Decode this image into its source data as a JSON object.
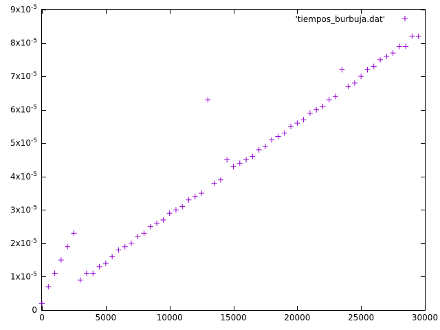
{
  "chart_data": {
    "type": "scatter",
    "title": "",
    "xlabel": "",
    "ylabel": "",
    "xlim": [
      0,
      30000
    ],
    "ylim": [
      0,
      9e-05
    ],
    "x_ticks": [
      0,
      5000,
      10000,
      15000,
      20000,
      25000,
      30000
    ],
    "x_tick_labels": [
      "0",
      "5000",
      "10000",
      "15000",
      "20000",
      "25000",
      "30000"
    ],
    "y_ticks": [
      0,
      1e-05,
      2e-05,
      3e-05,
      4e-05,
      5e-05,
      6e-05,
      7e-05,
      8e-05,
      9e-05
    ],
    "y_tick_labels": [
      {
        "mantissa": "0",
        "exponent": ""
      },
      {
        "mantissa": "1x10",
        "exponent": "-5"
      },
      {
        "mantissa": "2x10",
        "exponent": "-5"
      },
      {
        "mantissa": "3x10",
        "exponent": "-5"
      },
      {
        "mantissa": "4x10",
        "exponent": "-5"
      },
      {
        "mantissa": "5x10",
        "exponent": "-5"
      },
      {
        "mantissa": "6x10",
        "exponent": "-5"
      },
      {
        "mantissa": "7x10",
        "exponent": "-5"
      },
      {
        "mantissa": "8x10",
        "exponent": "-5"
      },
      {
        "mantissa": "9x10",
        "exponent": "-5"
      }
    ],
    "grid": false,
    "legend_position": "top-right",
    "series": [
      {
        "name": "'tiempos_burbuja.dat'",
        "color": "#9400d3",
        "marker": "plus",
        "x": [
          0,
          500,
          1000,
          1500,
          2000,
          2500,
          3000,
          3500,
          4000,
          4500,
          5000,
          5500,
          6000,
          6500,
          7000,
          7500,
          8000,
          8500,
          9000,
          9500,
          10000,
          10500,
          11000,
          11500,
          12000,
          12500,
          13000,
          13500,
          14000,
          14500,
          15000,
          15500,
          16000,
          16500,
          17000,
          17500,
          18000,
          18500,
          19000,
          19500,
          20000,
          20500,
          21000,
          21500,
          22000,
          22500,
          23000,
          23500,
          24000,
          24500,
          25000,
          25500,
          26000,
          26500,
          27000,
          27500,
          28000,
          28500,
          29000,
          29500
        ],
        "y": [
          2e-06,
          7e-06,
          1.1e-05,
          1.5e-05,
          1.9e-05,
          2.3e-05,
          9e-06,
          1.1e-05,
          1.1e-05,
          1.3e-05,
          1.4e-05,
          1.6e-05,
          1.8e-05,
          1.9e-05,
          2e-05,
          2.2e-05,
          2.3e-05,
          2.5e-05,
          2.6e-05,
          2.7e-05,
          2.9e-05,
          3e-05,
          3.1e-05,
          3.3e-05,
          3.4e-05,
          3.5e-05,
          6.3e-05,
          3.8e-05,
          3.9e-05,
          4.5e-05,
          4.3e-05,
          4.4e-05,
          4.5e-05,
          4.6e-05,
          4.8e-05,
          4.9e-05,
          5.1e-05,
          5.2e-05,
          5.3e-05,
          5.5e-05,
          5.6e-05,
          5.7e-05,
          5.9e-05,
          6e-05,
          6.1e-05,
          6.3e-05,
          6.4e-05,
          7.2e-05,
          6.7e-05,
          6.8e-05,
          7e-05,
          7.2e-05,
          7.3e-05,
          7.5e-05,
          7.6e-05,
          7.7e-05,
          7.9e-05,
          7.9e-05,
          8.2e-05,
          8.2e-05
        ]
      }
    ]
  }
}
